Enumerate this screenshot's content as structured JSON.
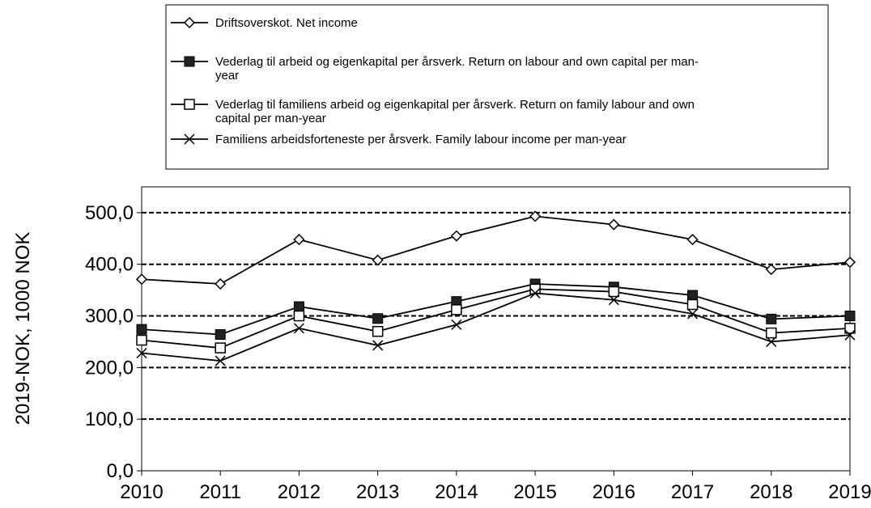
{
  "chart_data": {
    "type": "line",
    "title": "",
    "xlabel": "",
    "ylabel": "2019-NOK, 1000 NOK",
    "categories": [
      "2010",
      "2011",
      "2012",
      "2013",
      "2014",
      "2015",
      "2016",
      "2017",
      "2018",
      "2019"
    ],
    "ylim": [
      0,
      550
    ],
    "yticks": [
      0,
      100,
      200,
      300,
      400,
      500
    ],
    "ytick_labels": [
      "0,0",
      "100,0",
      "200,0",
      "300,0",
      "400,0",
      "500,0"
    ],
    "grid": "horizontal dashed at 100, 200, 300, 400, 500",
    "legend_position": "top",
    "series": [
      {
        "name": "Driftsoverskot. Net income",
        "marker": "open-diamond",
        "color": "#000000",
        "values": [
          371,
          362,
          448,
          408,
          455,
          493,
          477,
          448,
          390,
          404
        ]
      },
      {
        "name": "Vederlag til arbeid og eigenkapital per årsverk. Return on labour and own capital per man-year",
        "legend_lines": [
          "Vederlag til arbeid og eigenkapital per årsverk. Return on labour and own capital per man-",
          "year"
        ],
        "marker": "filled-square",
        "color": "#000000",
        "values": [
          274,
          264,
          318,
          295,
          328,
          362,
          356,
          340,
          294,
          300
        ]
      },
      {
        "name": "Vederlag til familiens arbeid og eigenkapital per årsverk. Return on family labour and own capital per man-year",
        "legend_lines": [
          "Vederlag til familiens arbeid og eigenkapital per årsverk. Return on family labour and own",
          "capital per man-year"
        ],
        "marker": "open-square",
        "color": "#000000",
        "values": [
          253,
          238,
          300,
          270,
          312,
          352,
          347,
          322,
          267,
          276
        ]
      },
      {
        "name": "Familiens arbeidsforteneste per årsverk. Family labour income per man-year",
        "marker": "x",
        "color": "#000000",
        "values": [
          228,
          213,
          276,
          243,
          283,
          344,
          331,
          304,
          250,
          263
        ]
      }
    ]
  }
}
